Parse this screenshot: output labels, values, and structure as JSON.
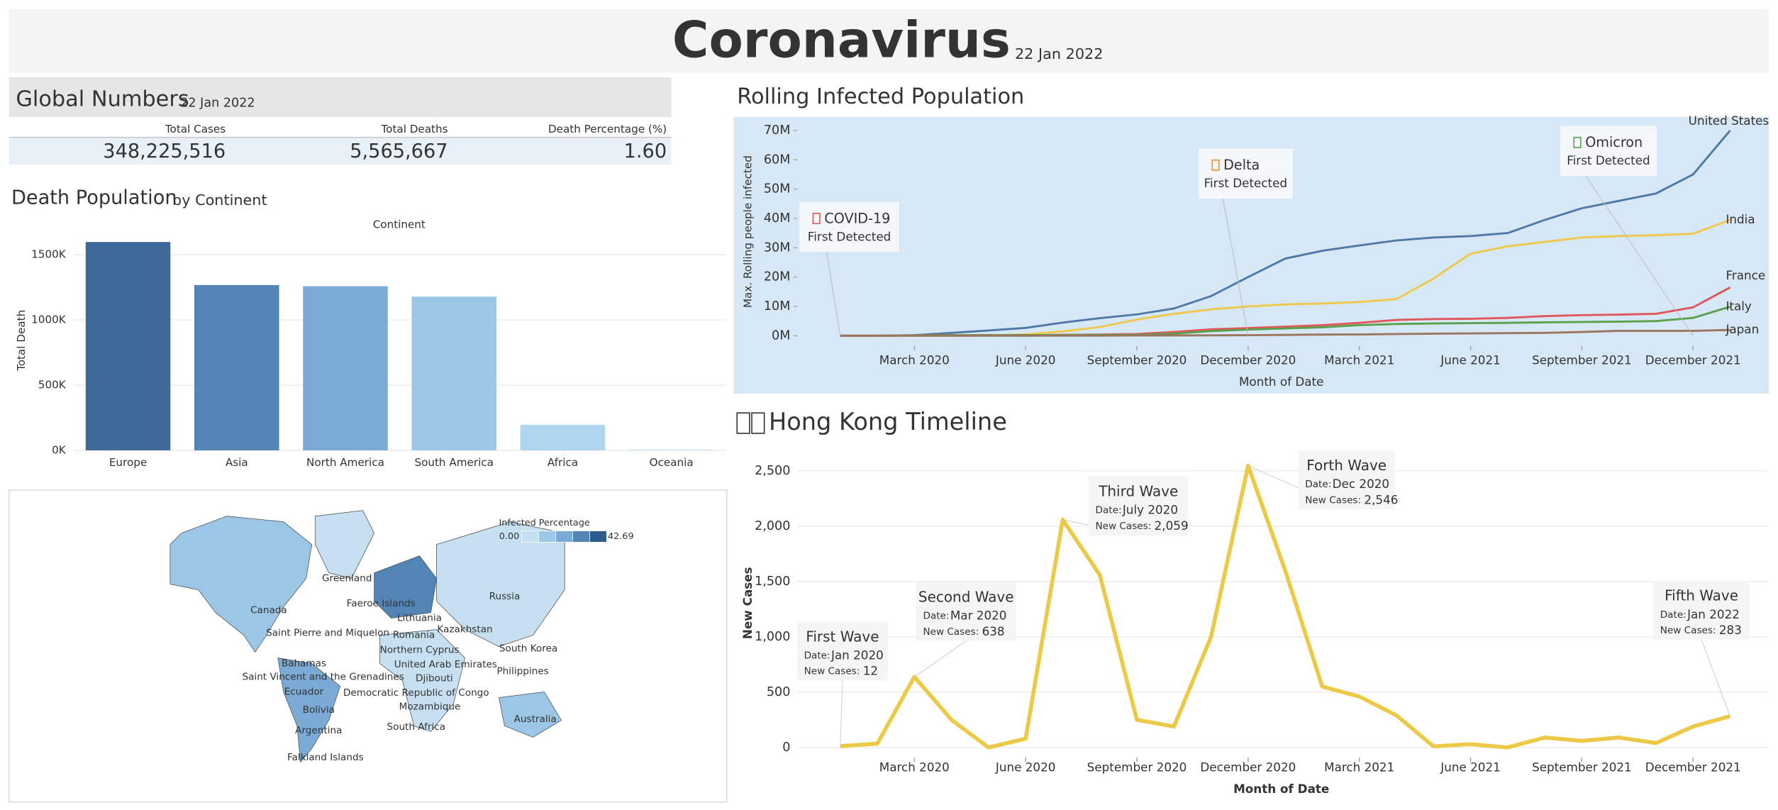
{
  "header": {
    "title": "Coronavirus",
    "date": "22 Jan 2022"
  },
  "global": {
    "title": "Global Numbers",
    "date": "22 Jan 2022",
    "headers": [
      "Total Cases",
      "Total Deaths",
      "Death Percentage (%)"
    ],
    "values": [
      "348,225,516",
      "5,565,667",
      "1.60"
    ]
  },
  "chart_data": [
    {
      "type": "bar",
      "title": "Death Population",
      "subtitle": "by Continent",
      "top_label": "Continent",
      "ylabel": "Total Death",
      "categories": [
        "Europe",
        "Asia",
        "North America",
        "South America",
        "Africa",
        "Oceania"
      ],
      "values": [
        1598000,
        1268000,
        1259000,
        1179000,
        196000,
        7000
      ],
      "colors": [
        "#3e6a9a",
        "#5285b6",
        "#7aaad5",
        "#9cc6e6",
        "#b0d5ee",
        "#c9e1f3"
      ],
      "ylim": [
        0,
        1670000
      ],
      "yticks": [
        {
          "value": 0,
          "label": "0K"
        },
        {
          "value": 500000,
          "label": "500K"
        },
        {
          "value": 1000000,
          "label": "1000K"
        },
        {
          "value": 1500000,
          "label": "1500K"
        }
      ],
      "grid": true
    },
    {
      "type": "line",
      "title": "Rolling Infected Population",
      "xlabel": "Month of Date",
      "ylabel": "Max. Rolling people infected",
      "x": [
        "2020-01",
        "2020-02",
        "2020-03",
        "2020-04",
        "2020-05",
        "2020-06",
        "2020-07",
        "2020-08",
        "2020-09",
        "2020-10",
        "2020-11",
        "2020-12",
        "2021-01",
        "2021-02",
        "2021-03",
        "2021-04",
        "2021-05",
        "2021-06",
        "2021-07",
        "2021-08",
        "2021-09",
        "2021-10",
        "2021-11",
        "2021-12",
        "2022-01"
      ],
      "xticks": [
        {
          "value": "2020-03",
          "label": "March 2020"
        },
        {
          "value": "2020-06",
          "label": "June 2020"
        },
        {
          "value": "2020-09",
          "label": "September 2020"
        },
        {
          "value": "2020-12",
          "label": "December 2020"
        },
        {
          "value": "2021-03",
          "label": "March 2021"
        },
        {
          "value": "2021-06",
          "label": "June 2021"
        },
        {
          "value": "2021-09",
          "label": "September 2021"
        },
        {
          "value": "2021-12",
          "label": "December 2021"
        }
      ],
      "ylim": [
        -3500000,
        74500000
      ],
      "yticks": [
        {
          "value": 0,
          "label": "0M"
        },
        {
          "value": 10000000,
          "label": "10M"
        },
        {
          "value": 20000000,
          "label": "20M"
        },
        {
          "value": 30000000,
          "label": "30M"
        },
        {
          "value": 40000000,
          "label": "40M"
        },
        {
          "value": 50000000,
          "label": "50M"
        },
        {
          "value": 60000000,
          "label": "60M"
        },
        {
          "value": 70000000,
          "label": "70M"
        }
      ],
      "grid": false,
      "series": [
        {
          "name": "United States",
          "color": "#4e79a7",
          "values": [
            0,
            0,
            200000,
            1000000,
            1800000,
            2700000,
            4500000,
            6000000,
            7300000,
            9300000,
            13500000,
            20000000,
            26300000,
            29000000,
            30800000,
            32500000,
            33500000,
            34000000,
            35000000,
            39500000,
            43500000,
            46000000,
            48500000,
            55000000,
            70000000
          ]
        },
        {
          "name": "India",
          "color": "#f1c84b",
          "values": [
            0,
            0,
            0,
            0,
            100000,
            500000,
            1500000,
            3000000,
            5500000,
            7500000,
            9000000,
            10000000,
            10700000,
            11000000,
            11500000,
            12500000,
            19500000,
            28000000,
            30500000,
            32000000,
            33500000,
            34000000,
            34300000,
            34800000,
            39500000
          ]
        },
        {
          "name": "France",
          "color": "#e15759",
          "values": [
            0,
            0,
            100000,
            200000,
            200000,
            200000,
            300000,
            400000,
            600000,
            1300000,
            2200000,
            2600000,
            3100000,
            3600000,
            4400000,
            5400000,
            5700000,
            5800000,
            6100000,
            6700000,
            7000000,
            7200000,
            7500000,
            9700000,
            16500000
          ]
        },
        {
          "name": "Italy",
          "color": "#59a14f",
          "values": [
            0,
            0,
            100000,
            200000,
            200000,
            200000,
            250000,
            300000,
            300000,
            700000,
            1600000,
            2100000,
            2500000,
            2900000,
            3600000,
            4000000,
            4200000,
            4300000,
            4400000,
            4600000,
            4700000,
            4800000,
            5000000,
            6100000,
            9900000
          ]
        },
        {
          "name": "Japan",
          "color": "#9c755f",
          "values": [
            0,
            0,
            10000,
            20000,
            30000,
            30000,
            40000,
            60000,
            80000,
            100000,
            150000,
            200000,
            300000,
            400000,
            450000,
            600000,
            700000,
            800000,
            900000,
            1000000,
            1300000,
            1700000,
            1700000,
            1700000,
            2000000
          ]
        }
      ],
      "annotations": [
        {
          "name": "COVID-19",
          "text": "First Detected",
          "color": "#e15759"
        },
        {
          "name": "Delta",
          "text": "First Detected",
          "color": "#f28e2b"
        },
        {
          "name": "Omicron",
          "text": "First Detected",
          "color": "#59a14f"
        }
      ]
    },
    {
      "type": "line",
      "title": "Hong Kong Timeline",
      "xlabel": "Month of Date",
      "ylabel": "New Cases",
      "x": [
        "2020-01",
        "2020-02",
        "2020-03",
        "2020-04",
        "2020-05",
        "2020-06",
        "2020-07",
        "2020-08",
        "2020-09",
        "2020-10",
        "2020-11",
        "2020-12",
        "2021-01",
        "2021-02",
        "2021-03",
        "2021-04",
        "2021-05",
        "2021-06",
        "2021-07",
        "2021-08",
        "2021-09",
        "2021-10",
        "2021-11",
        "2021-12",
        "2022-01"
      ],
      "xticks": [
        {
          "value": "2020-03",
          "label": "March 2020"
        },
        {
          "value": "2020-06",
          "label": "June 2020"
        },
        {
          "value": "2020-09",
          "label": "September 2020"
        },
        {
          "value": "2020-12",
          "label": "December 2020"
        },
        {
          "value": "2021-03",
          "label": "March 2021"
        },
        {
          "value": "2021-06",
          "label": "June 2021"
        },
        {
          "value": "2021-09",
          "label": "September 2021"
        },
        {
          "value": "2021-12",
          "label": "December 2021"
        }
      ],
      "ylim": [
        -90,
        2700
      ],
      "yticks": [
        0,
        500,
        {
          "value": 1000,
          "label": "1,000"
        },
        {
          "value": 1500,
          "label": "1,500"
        },
        {
          "value": 2000,
          "label": "2,000"
        },
        {
          "value": 2500,
          "label": "2,500"
        }
      ],
      "grid": true,
      "color": "#edc948",
      "values": [
        12,
        35,
        638,
        250,
        0,
        80,
        2059,
        1560,
        250,
        190,
        1000,
        2546,
        1600,
        550,
        460,
        290,
        10,
        30,
        0,
        90,
        60,
        90,
        40,
        190,
        283
      ],
      "date_label": "Date:",
      "cases_label": "New Cases:",
      "annotations": [
        {
          "name": "First Wave",
          "date": "Jan 2020",
          "cases": "12",
          "color": "#76b7b2"
        },
        {
          "name": "Second Wave",
          "date": "Mar 2020",
          "cases": "638",
          "color": "#b07aa1"
        },
        {
          "name": "Third Wave",
          "date": "July 2020",
          "cases": "2,059",
          "color": "#4e79a7"
        },
        {
          "name": "Forth Wave",
          "date": "Dec 2020",
          "cases": "2,546",
          "color": "#59a14f"
        },
        {
          "name": "Fifth Wave",
          "date": "Jan 2022",
          "cases": "283",
          "color": "#9c755f"
        }
      ]
    }
  ],
  "map": {
    "legend_title": "Infected Percentage",
    "legend_min": {
      "value": 0,
      "label": "0.00"
    },
    "legend_max": 42.69,
    "legend_colors": [
      "#c6dff1",
      "#9cc6e6",
      "#7aaad5",
      "#5285b6",
      "#2f5b8a"
    ],
    "countries": [
      "Greenland",
      "Faeroe Islands",
      "Russia",
      "Canada",
      "Saint Pierre and Miquelon",
      "Kazakhstan",
      "Lithuania",
      "Romania",
      "Northern Cyprus",
      "South Korea",
      "United Arab Emirates",
      "Bahamas",
      "Saint Vincent and the Grenadines",
      "Philippines",
      "Ecuador",
      "Democratic Republic of Congo",
      "Djibouti",
      "Bolivia",
      "Mozambique",
      "Australia",
      "Argentina",
      "South Africa",
      "Falkland Islands"
    ]
  }
}
